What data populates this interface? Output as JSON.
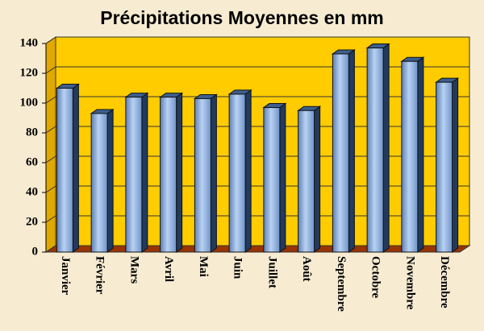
{
  "chart_data": {
    "type": "bar3d",
    "title": "Précipitations Moyennes en mm",
    "categories": [
      "Janvier",
      "Février",
      "Mars",
      "Avril",
      "Mai",
      "Juin",
      "Juillet",
      "Août",
      "Septembre",
      "Octobre",
      "Novembre",
      "Décembre"
    ],
    "values": [
      110,
      93,
      104,
      104,
      103,
      106,
      97,
      95,
      133,
      137,
      128,
      114
    ],
    "color": "#8fb3e4",
    "ylim": [
      0,
      140
    ],
    "yticks": [
      0,
      20,
      40,
      60,
      80,
      100,
      120,
      140
    ],
    "grid": true
  }
}
